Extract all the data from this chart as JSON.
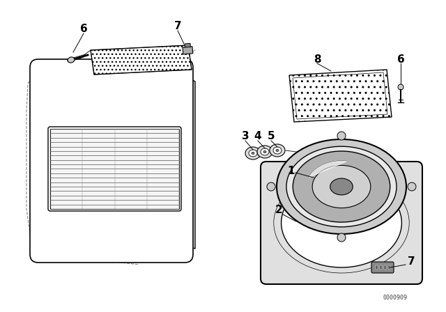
{
  "bg_color": "#ffffff",
  "line_color": "#000000",
  "watermark": "0000909",
  "fig_w": 6.4,
  "fig_h": 4.48,
  "dpi": 100
}
